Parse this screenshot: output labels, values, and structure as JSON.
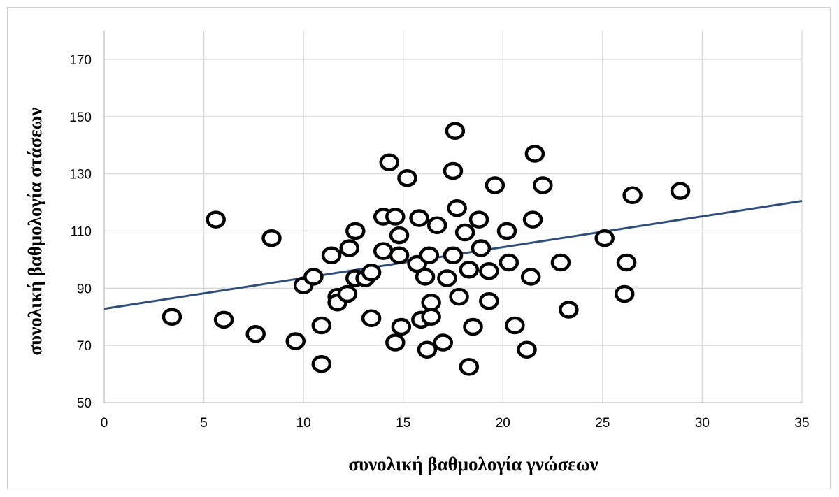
{
  "chart_data": {
    "type": "scatter",
    "title": "",
    "xlabel": "συνολική βαθμολογία γνώσεων",
    "ylabel": "συνολική βαθμολογία στάσεων",
    "xlim": [
      0,
      35
    ],
    "ylim": [
      50,
      180
    ],
    "x_ticks": [
      0,
      5,
      10,
      15,
      20,
      25,
      30,
      35
    ],
    "y_ticks": [
      50,
      70,
      90,
      110,
      130,
      150,
      170
    ],
    "grid": true,
    "points": [
      {
        "x": 3.4,
        "y": 80
      },
      {
        "x": 5.6,
        "y": 114
      },
      {
        "x": 6.0,
        "y": 79
      },
      {
        "x": 7.6,
        "y": 74
      },
      {
        "x": 8.4,
        "y": 107.5
      },
      {
        "x": 9.6,
        "y": 71.5
      },
      {
        "x": 10.0,
        "y": 91
      },
      {
        "x": 10.5,
        "y": 94
      },
      {
        "x": 10.9,
        "y": 77
      },
      {
        "x": 10.9,
        "y": 63.5
      },
      {
        "x": 11.4,
        "y": 101.5
      },
      {
        "x": 11.7,
        "y": 87
      },
      {
        "x": 11.7,
        "y": 85
      },
      {
        "x": 12.2,
        "y": 88
      },
      {
        "x": 12.3,
        "y": 104
      },
      {
        "x": 12.6,
        "y": 110
      },
      {
        "x": 12.6,
        "y": 93.5
      },
      {
        "x": 13.1,
        "y": 93.5
      },
      {
        "x": 13.4,
        "y": 95.5
      },
      {
        "x": 13.4,
        "y": 79.5
      },
      {
        "x": 14.0,
        "y": 103
      },
      {
        "x": 14.0,
        "y": 115
      },
      {
        "x": 14.3,
        "y": 134
      },
      {
        "x": 14.6,
        "y": 115
      },
      {
        "x": 14.6,
        "y": 71
      },
      {
        "x": 14.8,
        "y": 101.5
      },
      {
        "x": 14.8,
        "y": 108.5
      },
      {
        "x": 14.9,
        "y": 76.5
      },
      {
        "x": 15.2,
        "y": 128.5
      },
      {
        "x": 15.7,
        "y": 98.5
      },
      {
        "x": 15.8,
        "y": 114.5
      },
      {
        "x": 15.9,
        "y": 79
      },
      {
        "x": 16.1,
        "y": 94
      },
      {
        "x": 16.2,
        "y": 68.5
      },
      {
        "x": 16.3,
        "y": 101.5
      },
      {
        "x": 16.4,
        "y": 85
      },
      {
        "x": 16.4,
        "y": 80
      },
      {
        "x": 16.7,
        "y": 112
      },
      {
        "x": 17.0,
        "y": 71
      },
      {
        "x": 17.2,
        "y": 93.5
      },
      {
        "x": 17.5,
        "y": 101.5
      },
      {
        "x": 17.5,
        "y": 131
      },
      {
        "x": 17.6,
        "y": 145
      },
      {
        "x": 17.7,
        "y": 118
      },
      {
        "x": 17.8,
        "y": 87
      },
      {
        "x": 18.1,
        "y": 109.5
      },
      {
        "x": 18.3,
        "y": 96.5
      },
      {
        "x": 18.3,
        "y": 62.5
      },
      {
        "x": 18.5,
        "y": 76.5
      },
      {
        "x": 18.8,
        "y": 114
      },
      {
        "x": 18.9,
        "y": 104
      },
      {
        "x": 19.3,
        "y": 96
      },
      {
        "x": 19.3,
        "y": 85.5
      },
      {
        "x": 19.6,
        "y": 126
      },
      {
        "x": 20.2,
        "y": 110
      },
      {
        "x": 20.3,
        "y": 99
      },
      {
        "x": 20.6,
        "y": 77
      },
      {
        "x": 21.2,
        "y": 68.5
      },
      {
        "x": 21.4,
        "y": 94
      },
      {
        "x": 21.5,
        "y": 114
      },
      {
        "x": 21.6,
        "y": 137
      },
      {
        "x": 22.0,
        "y": 126
      },
      {
        "x": 22.9,
        "y": 99
      },
      {
        "x": 23.3,
        "y": 82.5
      },
      {
        "x": 25.1,
        "y": 107.5
      },
      {
        "x": 26.1,
        "y": 88
      },
      {
        "x": 26.2,
        "y": 99
      },
      {
        "x": 26.5,
        "y": 122.5
      },
      {
        "x": 28.9,
        "y": 124
      }
    ],
    "trendline": {
      "x": [
        0,
        35
      ],
      "y": [
        82.8,
        120.5
      ]
    },
    "colors": {
      "markers": "#000000",
      "trendline": "#2f4f7a",
      "grid": "#d9d9d9"
    }
  }
}
